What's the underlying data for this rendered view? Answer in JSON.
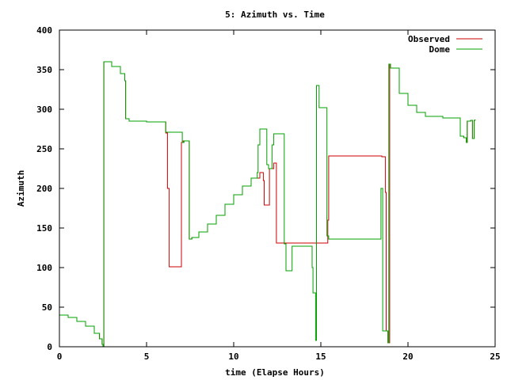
{
  "chart_data": {
    "type": "line",
    "title": "5: Azimuth vs. Time",
    "xlabel": "time (Elapse Hours)",
    "ylabel": "Azimuth",
    "xlim": [
      0,
      25
    ],
    "ylim": [
      0,
      400
    ],
    "xticks": [
      "0",
      "5",
      "10",
      "15",
      "20",
      "25"
    ],
    "yticks": [
      "0",
      "50",
      "100",
      "150",
      "200",
      "250",
      "300",
      "350",
      "400"
    ],
    "legend_position": "top-right",
    "grid": false,
    "series": [
      {
        "name": "Observed",
        "color": "#cc0000",
        "step": true,
        "points": [
          [
            0.0,
            40
          ],
          [
            0.5,
            37
          ],
          [
            1.0,
            32
          ],
          [
            1.5,
            26
          ],
          [
            2.0,
            17
          ],
          [
            2.3,
            10
          ],
          [
            2.45,
            3
          ],
          [
            2.5,
            0
          ],
          [
            2.55,
            360
          ],
          [
            3.0,
            354
          ],
          [
            3.5,
            345
          ],
          [
            3.75,
            336
          ],
          [
            3.8,
            288
          ],
          [
            4.0,
            285
          ],
          [
            5.0,
            284
          ],
          [
            6.05,
            284
          ],
          [
            6.1,
            270
          ],
          [
            6.2,
            200
          ],
          [
            6.3,
            101
          ],
          [
            6.9,
            101
          ],
          [
            7.0,
            258
          ],
          [
            7.1,
            260
          ],
          [
            7.3,
            260
          ],
          [
            7.45,
            136
          ],
          [
            7.6,
            138
          ],
          [
            8.0,
            145
          ],
          [
            8.5,
            155
          ],
          [
            9.0,
            166
          ],
          [
            9.5,
            180
          ],
          [
            10.0,
            192
          ],
          [
            10.5,
            203
          ],
          [
            11.0,
            213
          ],
          [
            11.5,
            220
          ],
          [
            11.7,
            210
          ],
          [
            11.75,
            179
          ],
          [
            12.0,
            179
          ],
          [
            12.05,
            225
          ],
          [
            12.3,
            232
          ],
          [
            12.45,
            131
          ],
          [
            14.0,
            131
          ],
          [
            15.3,
            131
          ],
          [
            15.4,
            160
          ],
          [
            15.45,
            241
          ],
          [
            18.3,
            241
          ],
          [
            18.5,
            240
          ],
          [
            18.7,
            195
          ],
          [
            18.75,
            20
          ],
          [
            18.85,
            5
          ],
          [
            18.95,
            357
          ],
          [
            19.0,
            352
          ],
          [
            19.5,
            320
          ],
          [
            20.0,
            305
          ],
          [
            20.5,
            296
          ],
          [
            21.0,
            291
          ],
          [
            22.0,
            289
          ],
          [
            22.9,
            289
          ],
          [
            23.0,
            266
          ],
          [
            23.2,
            264
          ],
          [
            23.35,
            258
          ],
          [
            23.4,
            285
          ],
          [
            23.6,
            286
          ],
          [
            23.7,
            263
          ],
          [
            23.8,
            286
          ],
          [
            23.85,
            287
          ]
        ]
      },
      {
        "name": "Dome",
        "color": "#00a000",
        "step": true,
        "points": [
          [
            0.0,
            40
          ],
          [
            0.5,
            37
          ],
          [
            1.0,
            32
          ],
          [
            1.5,
            26
          ],
          [
            2.0,
            17
          ],
          [
            2.3,
            10
          ],
          [
            2.45,
            3
          ],
          [
            2.5,
            0
          ],
          [
            2.55,
            360
          ],
          [
            3.0,
            354
          ],
          [
            3.5,
            345
          ],
          [
            3.75,
            336
          ],
          [
            3.8,
            288
          ],
          [
            4.0,
            285
          ],
          [
            5.0,
            284
          ],
          [
            6.05,
            284
          ],
          [
            6.1,
            271
          ],
          [
            7.0,
            271
          ],
          [
            7.05,
            258
          ],
          [
            7.15,
            260
          ],
          [
            7.3,
            260
          ],
          [
            7.45,
            136
          ],
          [
            7.6,
            138
          ],
          [
            8.0,
            145
          ],
          [
            8.5,
            155
          ],
          [
            9.0,
            166
          ],
          [
            9.5,
            180
          ],
          [
            10.0,
            192
          ],
          [
            10.5,
            203
          ],
          [
            11.0,
            213
          ],
          [
            11.35,
            220
          ],
          [
            11.4,
            255
          ],
          [
            11.5,
            275
          ],
          [
            11.85,
            275
          ],
          [
            11.9,
            230
          ],
          [
            12.0,
            225
          ],
          [
            12.2,
            255
          ],
          [
            12.3,
            269
          ],
          [
            12.8,
            269
          ],
          [
            12.9,
            130
          ],
          [
            13.0,
            96
          ],
          [
            13.3,
            96
          ],
          [
            13.35,
            127
          ],
          [
            14.4,
            127
          ],
          [
            14.5,
            100
          ],
          [
            14.55,
            68
          ],
          [
            14.7,
            8
          ],
          [
            14.75,
            330
          ],
          [
            14.9,
            302
          ],
          [
            15.2,
            302
          ],
          [
            15.35,
            140
          ],
          [
            15.45,
            136
          ],
          [
            18.3,
            136
          ],
          [
            18.45,
            200
          ],
          [
            18.55,
            20
          ],
          [
            18.85,
            5
          ],
          [
            18.9,
            357
          ],
          [
            19.0,
            352
          ],
          [
            19.5,
            320
          ],
          [
            20.0,
            305
          ],
          [
            20.5,
            296
          ],
          [
            21.0,
            291
          ],
          [
            22.0,
            289
          ],
          [
            22.9,
            289
          ],
          [
            23.0,
            266
          ],
          [
            23.2,
            264
          ],
          [
            23.35,
            258
          ],
          [
            23.4,
            285
          ],
          [
            23.6,
            286
          ],
          [
            23.7,
            263
          ],
          [
            23.8,
            286
          ],
          [
            23.85,
            287
          ]
        ]
      }
    ]
  }
}
